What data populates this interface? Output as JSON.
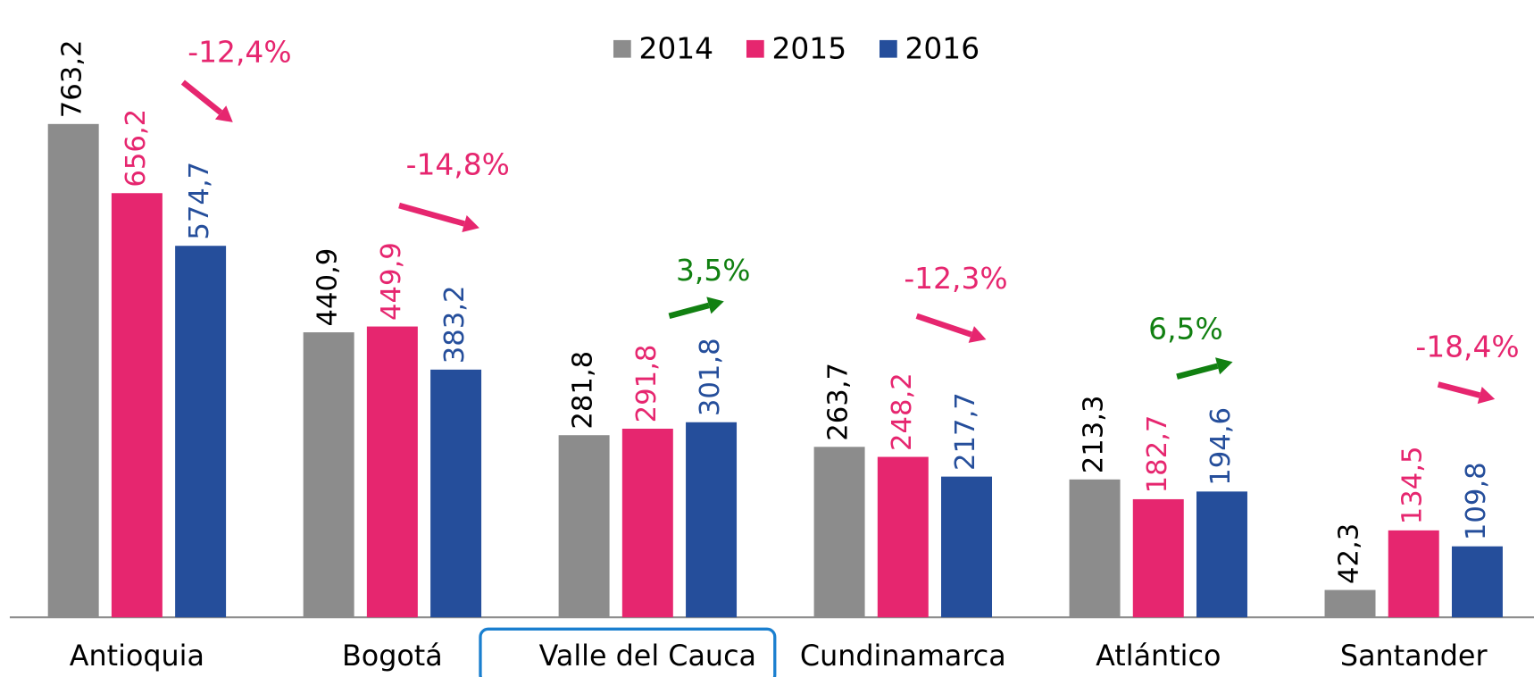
{
  "chart_data": {
    "type": "bar",
    "categories": [
      "Antioquia",
      "Bogotá",
      "Valle del Cauca",
      "Cundinamarca",
      "Atlántico",
      "Santander"
    ],
    "series": [
      {
        "name": "2014",
        "color": "#8c8c8c",
        "label_color": "#000000",
        "values": [
          763.2,
          440.9,
          281.8,
          263.7,
          213.3,
          42.3
        ],
        "value_labels": [
          "763,2",
          "440,9",
          "281,8",
          "263,7",
          "213,3",
          "42,3"
        ]
      },
      {
        "name": "2015",
        "color": "#e6266f",
        "label_color": "#e6266f",
        "values": [
          656.2,
          449.9,
          291.8,
          248.2,
          182.7,
          134.5
        ],
        "value_labels": [
          "656,2",
          "449,9",
          "291,8",
          "248,2",
          "182,7",
          "134,5"
        ]
      },
      {
        "name": "2016",
        "color": "#254e9b",
        "label_color": "#254e9b",
        "values": [
          574.7,
          383.2,
          301.8,
          217.7,
          194.6,
          109.8
        ],
        "value_labels": [
          "574,7",
          "383,2",
          "301,8",
          "217,7",
          "194,6",
          "109,8"
        ]
      }
    ],
    "annotations": [
      {
        "value": -12.4,
        "label": "-12,4%",
        "color": "#e6266f"
      },
      {
        "value": -14.8,
        "label": "-14,8%",
        "color": "#e6266f"
      },
      {
        "value": 3.5,
        "label": "3,5%",
        "color": "#118011"
      },
      {
        "value": -12.3,
        "label": "-12,3%",
        "color": "#e6266f"
      },
      {
        "value": 6.5,
        "label": "6,5%",
        "color": "#118011"
      },
      {
        "value": -18.4,
        "label": "-18,4%",
        "color": "#e6266f"
      }
    ],
    "ylim": [
      0,
      955
    ],
    "legend": "top"
  }
}
